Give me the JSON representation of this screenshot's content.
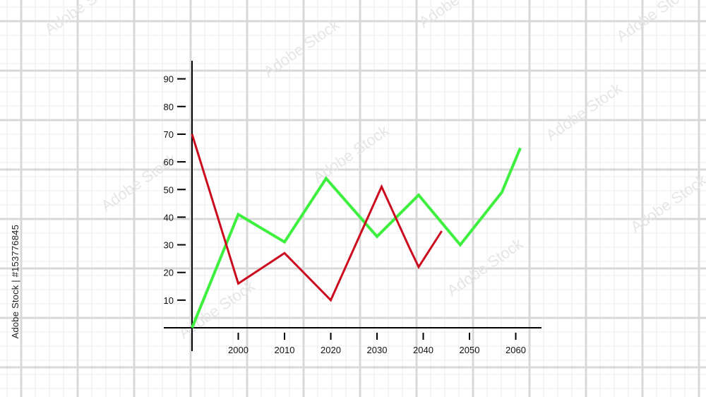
{
  "credit": "Adobe Stock | #153776845",
  "watermark": "Adobe Stock",
  "colors": {
    "green": "#3ef03e",
    "red": "#cc0a1e",
    "axis": "#000000",
    "grid_major": "#d8d8d8",
    "grid_minor": "#ececec"
  },
  "chart_data": {
    "type": "line",
    "title": "",
    "xlabel": "",
    "ylabel": "",
    "xlim": [
      1990,
      2067
    ],
    "ylim": [
      0,
      95
    ],
    "x_ticks": [
      2000,
      2010,
      2020,
      2030,
      2040,
      2050,
      2060
    ],
    "x_tick_labels": [
      "2000",
      "2010",
      "2020",
      "2030",
      "2040",
      "2050",
      "2060"
    ],
    "y_ticks": [
      10,
      20,
      30,
      40,
      50,
      60,
      70,
      80,
      90
    ],
    "y_tick_labels": [
      "10",
      "20",
      "30",
      "40",
      "50",
      "60",
      "70",
      "80",
      "90"
    ],
    "grid": false,
    "series": [
      {
        "color": "#3ef03e",
        "x": [
          1990,
          2000,
          2010,
          2019,
          2030,
          2039,
          2048,
          2057,
          2061
        ],
        "y": [
          0,
          41,
          31,
          54,
          33,
          48,
          30,
          49,
          65
        ]
      },
      {
        "color": "#cc0a1e",
        "x": [
          1990,
          2000,
          2010,
          2020,
          2031,
          2037,
          2039,
          2044
        ],
        "y": [
          70,
          16,
          27,
          10,
          51,
          29,
          22,
          35
        ]
      }
    ]
  }
}
